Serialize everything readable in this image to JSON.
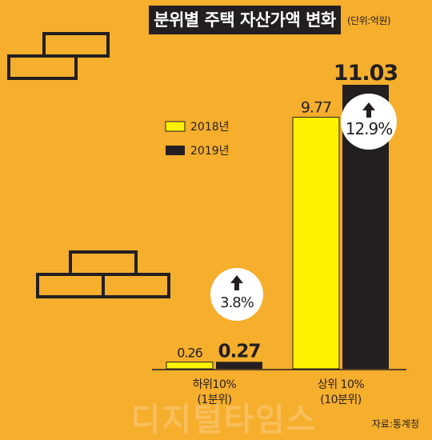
{
  "title": "분위별 주택 자산가액 변화",
  "unit_label": "(단위:억원)",
  "source": "자료:통계청",
  "watermark": "디지털타임스",
  "colors": {
    "background": "#F6AE2D",
    "series_2018": "#FFF200",
    "series_2019": "#231F20",
    "title_bg": "#231F20"
  },
  "chart_data": {
    "type": "bar",
    "title": "분위별 주택 자산가액 변화",
    "categories": [
      "하위10%\n(1분위)",
      "상위 10%\n(10분위)"
    ],
    "series": [
      {
        "name": "2018년",
        "values": [
          0.26,
          9.77
        ],
        "labels": [
          "0.26",
          "9.77"
        ]
      },
      {
        "name": "2019년",
        "values": [
          0.27,
          11.03
        ],
        "labels": [
          "0.27",
          "11.03"
        ]
      }
    ],
    "growth_labels": [
      "3.8%",
      "12.9%"
    ],
    "legend_position": "top-left",
    "ylim": [
      0,
      11.03
    ],
    "grid": false
  }
}
